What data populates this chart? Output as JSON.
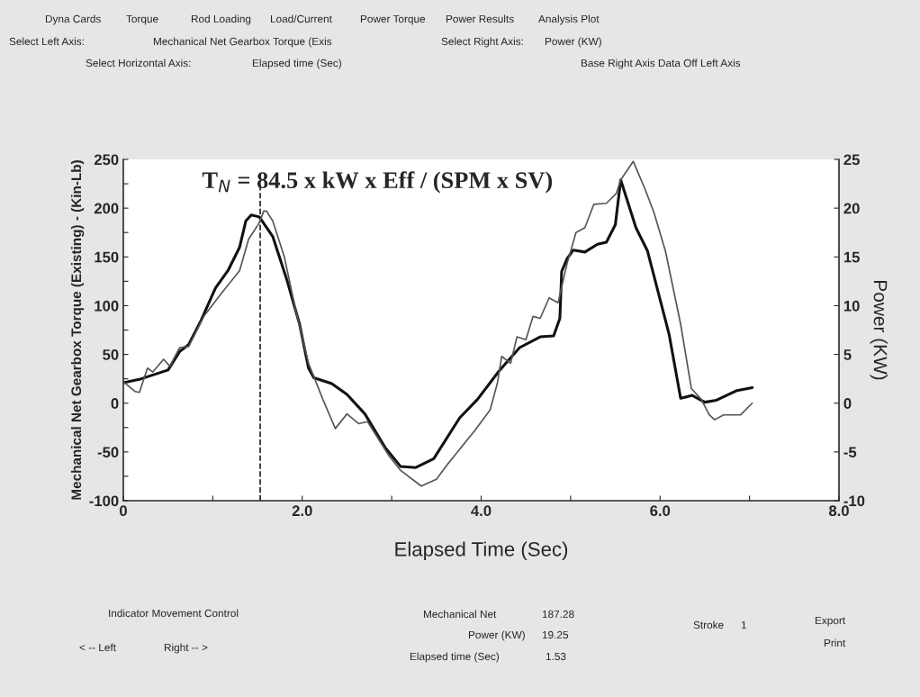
{
  "chart_data": {
    "type": "line",
    "title": "T$_{N}$ = 84.5 x kW x Eff / (SPM x SV)",
    "xlabel": "Elapsed Time (Sec)",
    "ylabel": "Mechanical Net Gearbox Torque (Existing) - (Kin-Lb)",
    "y2label": "Power (KW)",
    "xlim": [
      0,
      8
    ],
    "xticks": [
      0,
      {
        "value": 1,
        "label": null
      },
      {
        "value": 2,
        "label": "2.0"
      },
      {
        "value": 3,
        "label": null
      },
      {
        "value": 4,
        "label": "4.0"
      },
      {
        "value": 5,
        "label": null
      },
      {
        "value": 6,
        "label": "6.0"
      },
      {
        "value": 7,
        "label": null
      },
      {
        "value": 8,
        "label": "8.0"
      }
    ],
    "ylim": [
      -100,
      250
    ],
    "yticks": [
      -100,
      {
        "value": -75,
        "label": null
      },
      -50,
      {
        "value": -25,
        "label": null
      },
      0,
      {
        "value": 25,
        "label": null
      },
      50,
      {
        "value": 75,
        "label": null
      },
      100,
      {
        "value": 125,
        "label": null
      },
      150,
      {
        "value": 175,
        "label": null
      },
      200,
      {
        "value": 225,
        "label": null
      },
      250
    ],
    "y2lim": [
      -10,
      25
    ],
    "y2ticks": [
      -10,
      -5,
      0,
      5,
      10,
      15,
      20,
      25
    ],
    "grid": false,
    "legend": false,
    "marker": "none",
    "line_style": "solid",
    "series": [
      {
        "color": "#111111",
        "axis": "y",
        "x": [
          0,
          0.2,
          0.5,
          0.63,
          0.73,
          0.87,
          1.03,
          1.17,
          1.3,
          1.37,
          1.43,
          1.52,
          1.67,
          1.83,
          1.97,
          2.07,
          2.13,
          2.33,
          2.5,
          2.7,
          2.93,
          3.1,
          3.27,
          3.47,
          3.76,
          3.96,
          4.2,
          4.43,
          4.66,
          4.81,
          4.88,
          4.9,
          4.96,
          5.03,
          5.16,
          5.3,
          5.4,
          5.5,
          5.56,
          5.73,
          5.86,
          6.1,
          6.23,
          6.36,
          6.5,
          6.63,
          6.86,
          7.03
        ],
        "values": [
          21,
          25,
          34,
          53,
          60,
          85,
          118,
          136,
          160,
          187,
          193,
          191,
          171,
          126,
          81,
          36,
          26,
          20,
          9,
          -11,
          -46,
          -65,
          -66,
          -57,
          -15,
          4,
          33,
          57,
          68,
          69,
          87,
          135,
          148,
          157,
          155,
          163,
          165,
          183,
          229,
          180,
          156,
          71,
          5,
          8,
          1,
          3,
          13,
          16
        ]
      },
      {
        "color": "#555555",
        "axis": "y2",
        "x": [
          0,
          0.13,
          0.18,
          0.27,
          0.33,
          0.45,
          0.52,
          0.63,
          0.73,
          0.9,
          1.1,
          1.3,
          1.4,
          1.52,
          1.57,
          1.6,
          1.67,
          1.8,
          1.93,
          2.07,
          2.23,
          2.37,
          2.5,
          2.63,
          2.73,
          2.97,
          3.1,
          3.33,
          3.5,
          3.63,
          3.93,
          4.1,
          4.18,
          4.23,
          4.33,
          4.4,
          4.5,
          4.58,
          4.66,
          4.76,
          4.86,
          4.96,
          5.06,
          5.16,
          5.26,
          5.4,
          5.51,
          5.56,
          5.7,
          5.83,
          5.93,
          6.06,
          6.23,
          6.35,
          6.46,
          6.55,
          6.61,
          6.71,
          6.9,
          7.03
        ],
        "values": [
          2.2,
          1.2,
          1.1,
          3.6,
          3.2,
          4.5,
          3.8,
          5.7,
          5.8,
          8.9,
          11.3,
          13.6,
          16.8,
          18.5,
          19.7,
          19.7,
          18.7,
          15,
          9.4,
          4.1,
          0.4,
          -2.6,
          -1.1,
          -2.1,
          -1.9,
          -5.4,
          -6.9,
          -8.5,
          -7.8,
          -6.2,
          -2.8,
          -0.7,
          2,
          4.8,
          4.1,
          6.8,
          6.5,
          8.9,
          8.7,
          10.8,
          10.3,
          14.3,
          17.5,
          18,
          20.4,
          20.5,
          21.5,
          22.9,
          24.8,
          22,
          19.6,
          15.6,
          8.1,
          1.5,
          0.4,
          -1.2,
          -1.7,
          -1.2,
          -1.2,
          0
        ]
      }
    ],
    "ref_lines": [
      {
        "axis": "x",
        "value": 1.53,
        "color": "#222222",
        "line_style": "dashed"
      }
    ],
    "annotations": [
      "Dyna Cards",
      "Torque",
      "Rod Loading",
      "Load/Current",
      "Power Torque",
      "Power Results",
      "Analysis Plot",
      "Select Left Axis:",
      "Mechanical Net Gearbox Torque (Exis",
      "Select Right Axis:",
      "Power (KW)",
      "Select Horizontal Axis:",
      "Elapsed time (Sec)",
      "Base Right Axis Data Off Left Axis",
      "Indicator Movement Control",
      "< -- Left",
      "Right -- >",
      "Mechanical Net",
      "187.28",
      "Power (KW)",
      "19.25",
      "Elapsed time (Sec)",
      "1.53",
      "Stroke",
      "1",
      "Export",
      "Print"
    ]
  }
}
